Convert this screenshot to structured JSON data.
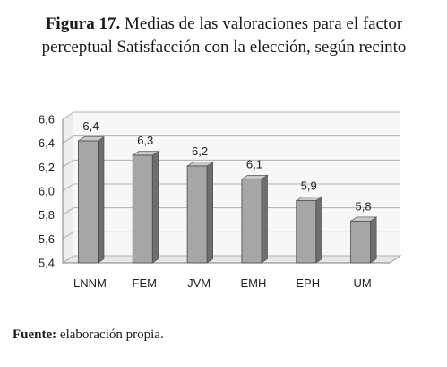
{
  "figure": {
    "label": "Figura 17.",
    "title": "Medias de las valoraciones para el factor perceptual Satisfacción con la elección, según recinto"
  },
  "source": {
    "label": "Fuente:",
    "text": "elaboración propia."
  },
  "chart_data": {
    "type": "bar",
    "style": "3d-column",
    "categories": [
      "LNNM",
      "FEM",
      "JVM",
      "EMH",
      "EPH",
      "UM"
    ],
    "values": [
      6.42,
      6.3,
      6.21,
      6.1,
      5.92,
      5.75
    ],
    "data_labels": [
      "6,4",
      "6,3",
      "6,2",
      "6,1",
      "5,9",
      "5,8"
    ],
    "ylim": [
      5.4,
      6.6
    ],
    "yticks": [
      5.4,
      5.6,
      5.8,
      6.0,
      6.2,
      6.4,
      6.6
    ],
    "ytick_labels": [
      "5,4",
      "5,6",
      "5,8",
      "6,0",
      "6,2",
      "6,4",
      "6,6"
    ],
    "grid": true,
    "colors": {
      "bar_front": "#a6a6a6",
      "bar_side": "#6e6e6e",
      "bar_top": "#c8c8c8",
      "grid": "#b0b0b0",
      "wall": "#f7f7f7"
    }
  }
}
